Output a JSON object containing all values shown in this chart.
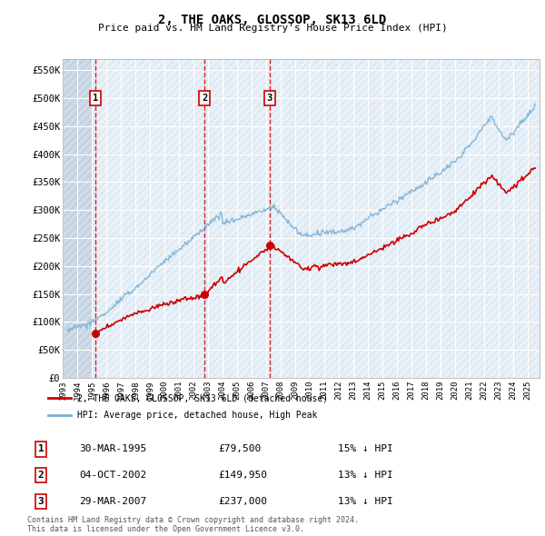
{
  "title": "2, THE OAKS, GLOSSOP, SK13 6LD",
  "subtitle": "Price paid vs. HM Land Registry's House Price Index (HPI)",
  "legend_label1": "2, THE OAKS, GLOSSOP, SK13 6LD (detached house)",
  "legend_label2": "HPI: Average price, detached house, High Peak",
  "footer1": "Contains HM Land Registry data © Crown copyright and database right 2024.",
  "footer2": "This data is licensed under the Open Government Licence v3.0.",
  "sale1_date": 1995.24,
  "sale1_label": "30-MAR-1995",
  "sale1_price": 79500,
  "sale1_pct": "15% ↓ HPI",
  "sale2_date": 2002.75,
  "sale2_label": "04-OCT-2002",
  "sale2_price": 149950,
  "sale2_pct": "13% ↓ HPI",
  "sale3_date": 2007.24,
  "sale3_label": "29-MAR-2007",
  "sale3_price": 237000,
  "sale3_pct": "13% ↓ HPI",
  "color_sale": "#cc0000",
  "color_hpi": "#7ab0d4",
  "vline_color": "#cc0000",
  "background_color": "#e8f0f8",
  "hatch_color": "#c8d5e0",
  "grid_color": "#ffffff",
  "ylim": [
    0,
    570000
  ],
  "yticks": [
    0,
    50000,
    100000,
    150000,
    200000,
    250000,
    300000,
    350000,
    400000,
    450000,
    500000,
    550000
  ],
  "ytick_labels": [
    "£0",
    "£50K",
    "£100K",
    "£150K",
    "£200K",
    "£250K",
    "£300K",
    "£350K",
    "£400K",
    "£450K",
    "£500K",
    "£550K"
  ],
  "xlim_start": 1993.0,
  "xlim_end": 2025.8,
  "xticks": [
    1993,
    1994,
    1995,
    1996,
    1997,
    1998,
    1999,
    2000,
    2001,
    2002,
    2003,
    2004,
    2005,
    2006,
    2007,
    2008,
    2009,
    2010,
    2011,
    2012,
    2013,
    2014,
    2015,
    2016,
    2017,
    2018,
    2019,
    2020,
    2021,
    2022,
    2023,
    2024,
    2025
  ]
}
